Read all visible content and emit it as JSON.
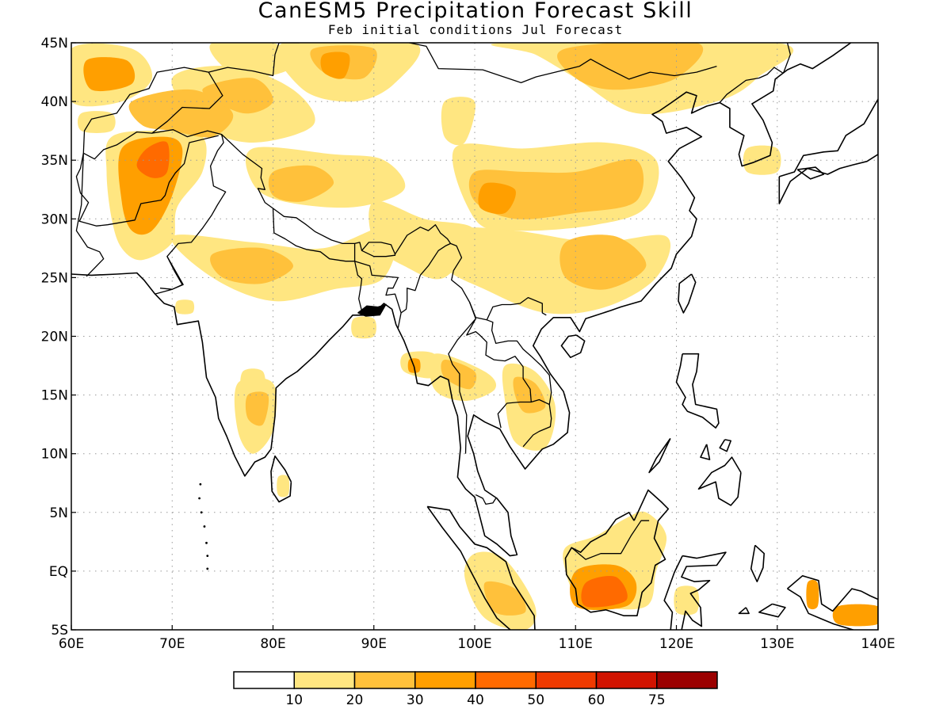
{
  "title": "CanESM5 Precipitation Forecast Skill",
  "subtitle": "Feb initial conditions  Jul Forecast",
  "map": {
    "lon_range": [
      60,
      140
    ],
    "lat_range": [
      -5,
      45
    ],
    "lon_ticks": [
      {
        "value": 60,
        "label": "60E"
      },
      {
        "value": 70,
        "label": "70E"
      },
      {
        "value": 80,
        "label": "80E"
      },
      {
        "value": 90,
        "label": "90E"
      },
      {
        "value": 100,
        "label": "100E"
      },
      {
        "value": 110,
        "label": "110E"
      },
      {
        "value": 120,
        "label": "120E"
      },
      {
        "value": 130,
        "label": "130E"
      },
      {
        "value": 140,
        "label": "140E"
      }
    ],
    "lat_ticks": [
      {
        "value": -5,
        "label": "5S"
      },
      {
        "value": 0,
        "label": "EQ"
      },
      {
        "value": 5,
        "label": "5N"
      },
      {
        "value": 10,
        "label": "10N"
      },
      {
        "value": 15,
        "label": "15N"
      },
      {
        "value": 20,
        "label": "20N"
      },
      {
        "value": 25,
        "label": "25N"
      },
      {
        "value": 30,
        "label": "30N"
      },
      {
        "value": 35,
        "label": "35N"
      },
      {
        "value": 40,
        "label": "40N"
      },
      {
        "value": 45,
        "label": "45N"
      }
    ],
    "grid": true,
    "coastline_color": "#000000"
  },
  "colorbar": {
    "colors": [
      "#ffffff",
      "#ffe681",
      "#ffc13b",
      "#ff9f00",
      "#ff6a00",
      "#f03a00",
      "#d11300",
      "#9b0000"
    ],
    "labels": [
      "10",
      "20",
      "30",
      "40",
      "50",
      "60",
      "75"
    ]
  },
  "skill_regions": [
    {
      "name": "Kazakhstan west",
      "level": 1,
      "pts": [
        [
          60,
          44.5
        ],
        [
          66,
          44.5
        ],
        [
          68,
          42
        ],
        [
          65,
          40
        ],
        [
          60,
          40
        ]
      ]
    },
    {
      "name": "Kazakhstan west core",
      "level": 3,
      "pts": [
        [
          61.5,
          43.5
        ],
        [
          65.5,
          43.5
        ],
        [
          66,
          41.5
        ],
        [
          62,
          41
        ]
      ]
    },
    {
      "name": "Turkmenistan",
      "level": 1,
      "pts": [
        [
          61,
          39
        ],
        [
          64,
          39
        ],
        [
          64,
          37.5
        ],
        [
          61,
          37.5
        ]
      ]
    },
    {
      "name": "Afghanistan Pakistan",
      "level": 1,
      "pts": [
        [
          64,
          37
        ],
        [
          69,
          37.5
        ],
        [
          73,
          37
        ],
        [
          73,
          34
        ],
        [
          70.5,
          31
        ],
        [
          70,
          28
        ],
        [
          67,
          26.5
        ],
        [
          65,
          27.5
        ],
        [
          64,
          30
        ],
        [
          63.5,
          34
        ]
      ]
    },
    {
      "name": "Afghanistan core",
      "level": 3,
      "pts": [
        [
          65,
          36
        ],
        [
          69,
          37
        ],
        [
          71,
          36
        ],
        [
          70,
          32
        ],
        [
          68,
          29
        ],
        [
          66,
          29
        ],
        [
          65,
          31.5
        ]
      ]
    },
    {
      "name": "Afghanistan peak",
      "level": 4,
      "pts": [
        [
          67.5,
          36
        ],
        [
          69.5,
          36.5
        ],
        [
          69.5,
          34
        ],
        [
          68,
          33.5
        ],
        [
          66.5,
          34.5
        ]
      ]
    },
    {
      "name": "Tajikistan",
      "level": 2,
      "pts": [
        [
          66,
          40
        ],
        [
          72,
          41
        ],
        [
          76,
          39
        ],
        [
          74,
          37
        ],
        [
          70,
          37.5
        ],
        [
          67,
          38
        ]
      ]
    },
    {
      "name": "Kyrgyz Tarim",
      "level": 1,
      "pts": [
        [
          70,
          42
        ],
        [
          76,
          43
        ],
        [
          82,
          41
        ],
        [
          84,
          38
        ],
        [
          78,
          36.5
        ],
        [
          73,
          38
        ]
      ]
    },
    {
      "name": "Kyrgyz core",
      "level": 2,
      "pts": [
        [
          73,
          41
        ],
        [
          78,
          42
        ],
        [
          80,
          40
        ],
        [
          77,
          39
        ]
      ]
    },
    {
      "name": "Zhungar",
      "level": 1,
      "pts": [
        [
          74,
          45
        ],
        [
          80,
          45
        ],
        [
          82,
          43
        ],
        [
          78,
          42
        ],
        [
          75,
          43
        ]
      ]
    },
    {
      "name": "Mongolia west",
      "level": 1,
      "pts": [
        [
          81,
          45
        ],
        [
          94,
          45
        ],
        [
          92,
          41.5
        ],
        [
          88,
          40
        ],
        [
          83,
          41
        ]
      ]
    },
    {
      "name": "Mongolia west core",
      "level": 2,
      "pts": [
        [
          84,
          44.5
        ],
        [
          90,
          44.5
        ],
        [
          89,
          42
        ],
        [
          85,
          42.5
        ]
      ]
    },
    {
      "name": "Mongolia west peak",
      "level": 3,
      "pts": [
        [
          85,
          44
        ],
        [
          87.5,
          44
        ],
        [
          87,
          42
        ],
        [
          85,
          42.5
        ]
      ]
    },
    {
      "name": "Mongolia east",
      "level": 1,
      "pts": [
        [
          103,
          45
        ],
        [
          130,
          45
        ],
        [
          128,
          42
        ],
        [
          124,
          40
        ],
        [
          116,
          39
        ],
        [
          110,
          42
        ],
        [
          106,
          44
        ]
      ]
    },
    {
      "name": "Mongolia east core",
      "level": 2,
      "pts": [
        [
          109,
          44.5
        ],
        [
          122,
          45
        ],
        [
          120,
          42
        ],
        [
          114,
          41
        ],
        [
          110,
          42
        ]
      ]
    },
    {
      "name": "Tibet west",
      "level": 1,
      "pts": [
        [
          70,
          28.5
        ],
        [
          78,
          28
        ],
        [
          85,
          27.5
        ],
        [
          92,
          29.5
        ],
        [
          91,
          25
        ],
        [
          86,
          24
        ],
        [
          80,
          23
        ],
        [
          74,
          25
        ]
      ]
    },
    {
      "name": "Tibet west core",
      "level": 2,
      "pts": [
        [
          74,
          27
        ],
        [
          79,
          27.5
        ],
        [
          82,
          26
        ],
        [
          79,
          24.5
        ],
        [
          75,
          25
        ]
      ]
    },
    {
      "name": "Tibet central",
      "level": 1,
      "pts": [
        [
          78,
          36
        ],
        [
          86,
          35.5
        ],
        [
          91,
          35
        ],
        [
          93,
          32.5
        ],
        [
          88,
          31
        ],
        [
          81,
          31.5
        ],
        [
          78,
          33
        ]
      ]
    },
    {
      "name": "Tibet central core",
      "level": 2,
      "pts": [
        [
          80,
          34
        ],
        [
          84,
          34.5
        ],
        [
          86,
          33
        ],
        [
          83,
          31.5
        ],
        [
          80,
          32
        ]
      ]
    },
    {
      "name": "Qinghai",
      "level": 1,
      "pts": [
        [
          98,
          36
        ],
        [
          105,
          36
        ],
        [
          113,
          36.5
        ],
        [
          118,
          35
        ],
        [
          117,
          31
        ],
        [
          112,
          29.5
        ],
        [
          104,
          29
        ],
        [
          100,
          30
        ]
      ]
    },
    {
      "name": "Qinghai core",
      "level": 2,
      "pts": [
        [
          100,
          34
        ],
        [
          105,
          34
        ],
        [
          110,
          34
        ],
        [
          116,
          35
        ],
        [
          116,
          31.5
        ],
        [
          110,
          30.5
        ],
        [
          104,
          30
        ],
        [
          100,
          31.5
        ]
      ]
    },
    {
      "name": "Qinghai peak",
      "level": 3,
      "pts": [
        [
          101,
          33
        ],
        [
          104,
          32.5
        ],
        [
          103,
          30.5
        ],
        [
          100.5,
          31
        ]
      ]
    },
    {
      "name": "Tarim east",
      "level": 1,
      "pts": [
        [
          97,
          40
        ],
        [
          100,
          40
        ],
        [
          99,
          36.5
        ],
        [
          97,
          37
        ]
      ]
    },
    {
      "name": "South China",
      "level": 1,
      "pts": [
        [
          98,
          29
        ],
        [
          104,
          29
        ],
        [
          112,
          28
        ],
        [
          119,
          28.5
        ],
        [
          118,
          25
        ],
        [
          113,
          22.5
        ],
        [
          107,
          22
        ],
        [
          101,
          24
        ],
        [
          97,
          26
        ]
      ]
    },
    {
      "name": "South China core",
      "level": 2,
      "pts": [
        [
          109,
          28
        ],
        [
          114,
          28.5
        ],
        [
          117,
          26
        ],
        [
          113,
          24
        ],
        [
          109,
          25
        ]
      ]
    },
    {
      "name": "Sichuan west",
      "level": 1,
      "pts": [
        [
          90,
          31.5
        ],
        [
          95,
          30
        ],
        [
          100,
          29
        ],
        [
          97,
          25
        ],
        [
          93,
          26
        ],
        [
          90,
          28
        ]
      ]
    },
    {
      "name": "Myanmar Thailand",
      "level": 1,
      "pts": [
        [
          96,
          18.5
        ],
        [
          101,
          17
        ],
        [
          102,
          15.5
        ],
        [
          99,
          14.5
        ],
        [
          96,
          15.5
        ]
      ]
    },
    {
      "name": "Myanmar core",
      "level": 2,
      "pts": [
        [
          97,
          18
        ],
        [
          100,
          17
        ],
        [
          99.5,
          15.5
        ],
        [
          97,
          16.5
        ]
      ]
    },
    {
      "name": "Laos Vietnam",
      "level": 1,
      "pts": [
        [
          103,
          17.5
        ],
        [
          106,
          17
        ],
        [
          108,
          14
        ],
        [
          107,
          10.5
        ],
        [
          104,
          11
        ],
        [
          103,
          14.5
        ]
      ]
    },
    {
      "name": "Laos core",
      "level": 2,
      "pts": [
        [
          104,
          16.5
        ],
        [
          106,
          16
        ],
        [
          107,
          14
        ],
        [
          105,
          13.5
        ],
        [
          104,
          15
        ]
      ]
    },
    {
      "name": "Irrawaddy",
      "level": 1,
      "pts": [
        [
          93,
          18.5
        ],
        [
          96,
          18.5
        ],
        [
          96,
          16.5
        ],
        [
          93,
          17
        ]
      ]
    },
    {
      "name": "Irrawaddy core",
      "level": 3,
      "pts": [
        [
          93.5,
          18
        ],
        [
          94.5,
          18
        ],
        [
          94.5,
          17
        ],
        [
          93.5,
          17
        ]
      ]
    },
    {
      "name": "Gujarat",
      "level": 1,
      "pts": [
        [
          77,
          17
        ],
        [
          79,
          17
        ],
        [
          79,
          15
        ],
        [
          77,
          15
        ]
      ]
    },
    {
      "name": "Karnataka",
      "level": 1,
      "pts": [
        [
          76.5,
          16
        ],
        [
          80,
          16
        ],
        [
          80,
          12
        ],
        [
          78,
          10
        ],
        [
          76.5,
          12
        ]
      ]
    },
    {
      "name": "Karnataka core",
      "level": 2,
      "pts": [
        [
          77.5,
          15
        ],
        [
          79.5,
          15
        ],
        [
          79,
          12.5
        ],
        [
          77.5,
          13
        ]
      ]
    },
    {
      "name": "Sri Lanka",
      "level": 1,
      "pts": [
        [
          80.5,
          8
        ],
        [
          81.5,
          8
        ],
        [
          81.5,
          6.5
        ],
        [
          80.5,
          6.5
        ]
      ]
    },
    {
      "name": "Bengal",
      "level": 1,
      "pts": [
        [
          88,
          21.5
        ],
        [
          90,
          21.5
        ],
        [
          90,
          20
        ],
        [
          88,
          20
        ]
      ]
    },
    {
      "name": "Gujarat small",
      "level": 1,
      "pts": [
        [
          70.5,
          23
        ],
        [
          72,
          23
        ],
        [
          72,
          22
        ],
        [
          70.5,
          22
        ]
      ]
    },
    {
      "name": "Korea",
      "level": 1,
      "pts": [
        [
          127,
          36
        ],
        [
          130,
          36
        ],
        [
          130,
          34
        ],
        [
          127,
          34
        ]
      ]
    },
    {
      "name": "Borneo",
      "level": 1,
      "pts": [
        [
          109,
          2
        ],
        [
          112,
          3
        ],
        [
          115,
          4.5
        ],
        [
          117,
          5
        ],
        [
          119,
          3
        ],
        [
          118,
          0
        ],
        [
          117,
          -3
        ],
        [
          112,
          -3
        ],
        [
          110,
          -2
        ],
        [
          109,
          0
        ]
      ]
    },
    {
      "name": "Borneo core",
      "level": 3,
      "pts": [
        [
          110,
          0
        ],
        [
          114,
          0.5
        ],
        [
          116,
          -1
        ],
        [
          115,
          -3
        ],
        [
          110,
          -3
        ]
      ]
    },
    {
      "name": "Borneo peak",
      "level": 4,
      "pts": [
        [
          111,
          -1
        ],
        [
          114,
          -0.5
        ],
        [
          115,
          -2.5
        ],
        [
          111,
          -3
        ]
      ]
    },
    {
      "name": "Sumatra",
      "level": 1,
      "pts": [
        [
          100,
          1.5
        ],
        [
          103,
          1
        ],
        [
          106,
          -3
        ],
        [
          105,
          -5
        ],
        [
          101,
          -4
        ],
        [
          99,
          -0.5
        ]
      ]
    },
    {
      "name": "Sumatra core",
      "level": 2,
      "pts": [
        [
          101,
          -1
        ],
        [
          104,
          -1.5
        ],
        [
          105,
          -3.5
        ],
        [
          102,
          -3.5
        ]
      ]
    },
    {
      "name": "Sulawesi",
      "level": 1,
      "pts": [
        [
          120,
          -1.5
        ],
        [
          122,
          -1.5
        ],
        [
          122,
          -3.5
        ],
        [
          120,
          -3.5
        ]
      ]
    },
    {
      "name": "New Guinea",
      "level": 3,
      "pts": [
        [
          133,
          -1
        ],
        [
          134,
          -1
        ],
        [
          134,
          -3
        ],
        [
          133,
          -3
        ]
      ]
    },
    {
      "name": "New Guinea east",
      "level": 3,
      "pts": [
        [
          136,
          -3
        ],
        [
          140,
          -3
        ],
        [
          140,
          -4.5
        ],
        [
          136,
          -4.5
        ]
      ]
    }
  ]
}
